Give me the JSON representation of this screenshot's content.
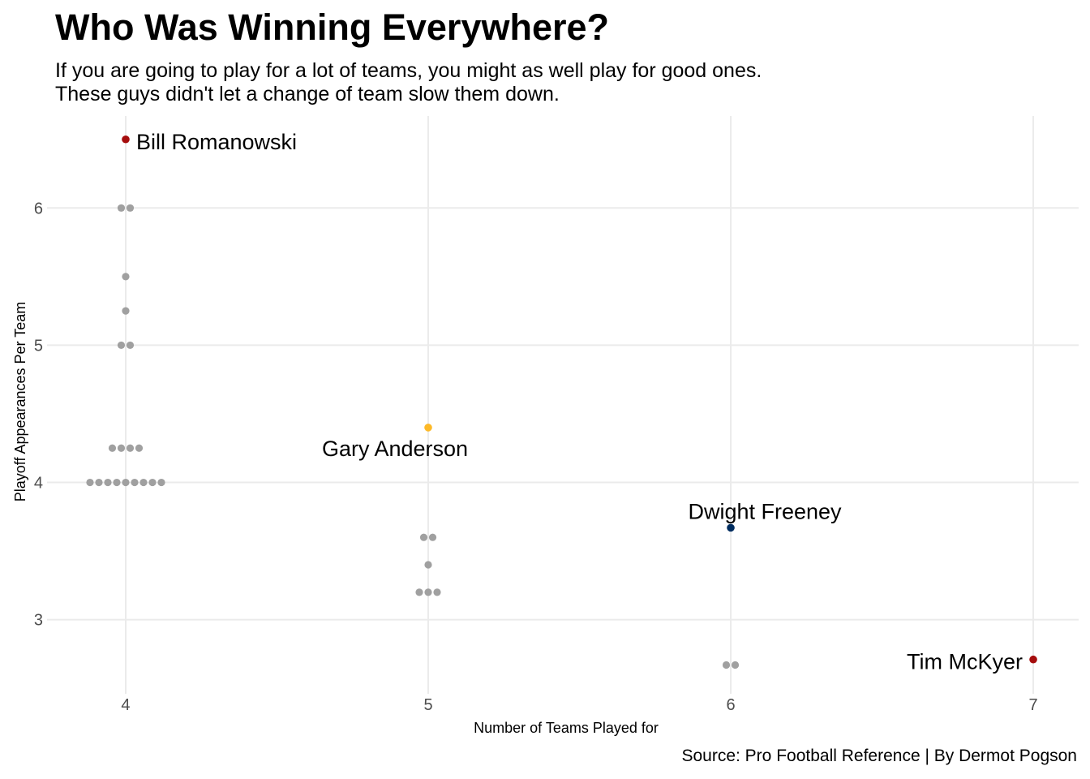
{
  "title": "Who Was Winning Everywhere?",
  "subtitle_lines": [
    "If you are going to play for a lot of teams, you might as well play for good ones.",
    "These guys didn't let a change of team slow them down."
  ],
  "caption": "Source: Pro Football Reference | By Dermot Pogson",
  "chart_data": {
    "type": "scatter",
    "title": "Who Was Winning Everywhere?",
    "xlabel": "Number of Teams Played for",
    "ylabel": "Playoff Appearances Per Team",
    "x_ticks": [
      4,
      5,
      6,
      7
    ],
    "y_ticks": [
      3,
      4,
      5,
      6
    ],
    "xlim": [
      3.74,
      7.15
    ],
    "ylim": [
      2.46,
      6.67
    ],
    "grid": true,
    "default_point_color": "#a0a0a0",
    "points": [
      {
        "x": 4,
        "y": 6.0,
        "n": 2
      },
      {
        "x": 4,
        "y": 5.5,
        "n": 1
      },
      {
        "x": 4,
        "y": 5.25,
        "n": 1
      },
      {
        "x": 4,
        "y": 5.0,
        "n": 2
      },
      {
        "x": 4,
        "y": 4.25,
        "n": 4
      },
      {
        "x": 4,
        "y": 4.0,
        "n": 9
      },
      {
        "x": 5,
        "y": 3.6,
        "n": 2
      },
      {
        "x": 5,
        "y": 3.4,
        "n": 1
      },
      {
        "x": 5,
        "y": 3.2,
        "n": 3
      },
      {
        "x": 6,
        "y": 2.67,
        "n": 2
      }
    ],
    "highlighted": [
      {
        "label": "Bill Romanowski",
        "x": 4,
        "y": 6.5,
        "color": "#a50d0d",
        "anchor": "right"
      },
      {
        "label": "Gary Anderson",
        "x": 5,
        "y": 4.4,
        "color": "#fdb927",
        "anchor": "below-left"
      },
      {
        "label": "Dwight Freeney",
        "x": 6,
        "y": 3.67,
        "color": "#002c5f",
        "anchor": "above"
      },
      {
        "label": "Tim McKyer",
        "x": 7,
        "y": 2.71,
        "color": "#a50d0d",
        "anchor": "left"
      }
    ]
  }
}
